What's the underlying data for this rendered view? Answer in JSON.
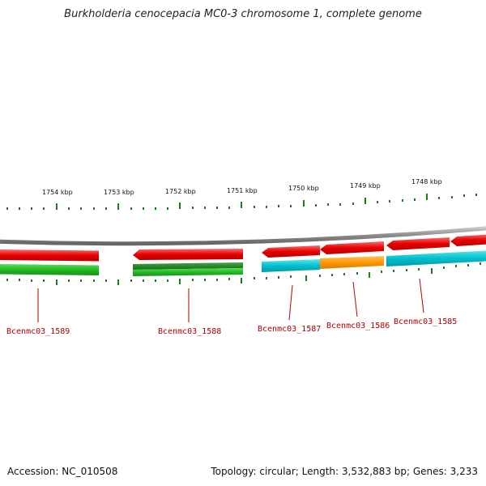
{
  "title": "Burkholderia cenocepacia MC0-3 chromosome 1, complete genome",
  "footer": {
    "accession": "Accession: NC_010508",
    "topology": "Topology: circular; Length: 3,532,883 bp; Genes: 3,233"
  },
  "scale_labels": [
    "1754 kbp",
    "1753 kbp",
    "1752 kbp",
    "1751 kbp",
    "1750 kbp",
    "1749 kbp",
    "1748 kbp"
  ],
  "genes": [
    {
      "label": "Bcenmc03_1589"
    },
    {
      "label": "Bcenmc03_1588"
    },
    {
      "label": "Bcenmc03_1587"
    },
    {
      "label": "Bcenmc03_1586"
    },
    {
      "label": "Bcenmc03_1585"
    }
  ],
  "colors": {
    "cds": "#e60000",
    "backbone": "#888888",
    "ticks": "#1a7a1a",
    "cog_green": "#22bb22",
    "cog_darkgreen": "#2a8a2a",
    "cog_cyan": "#00c0cc",
    "cog_orange": "#ff9900",
    "label": "#b00000"
  }
}
